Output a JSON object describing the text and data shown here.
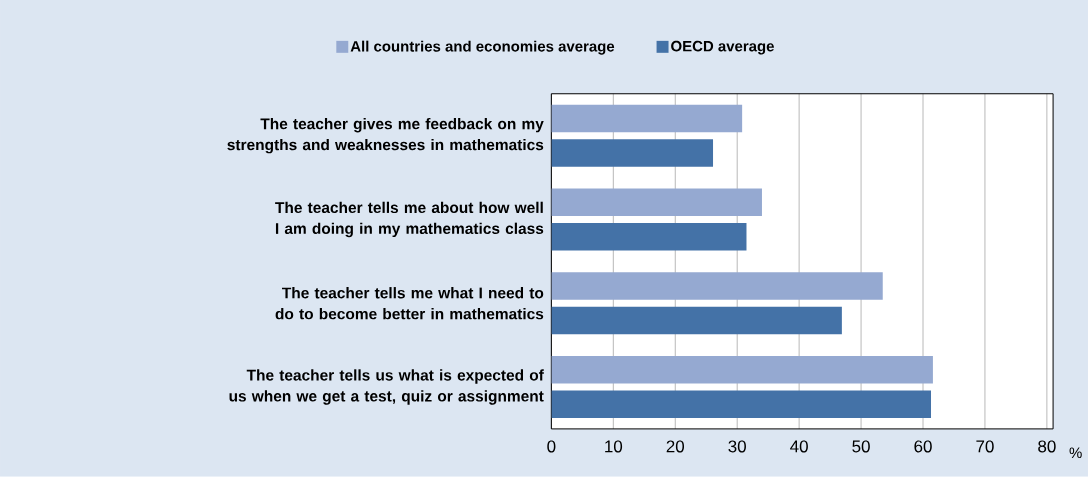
{
  "chart_data": {
    "type": "bar",
    "orientation": "horizontal",
    "xlabel": "%",
    "categories": [
      "The teacher gives me feedback on my strengths and weaknesses in mathematics",
      "The teacher tells me about how well I am doing in my mathematics class",
      "The teacher tells me what I need to do to become better in mathematics",
      "The teacher tells us what is expected of us when we get a test, quiz or assignment"
    ],
    "series": [
      {
        "name": "All countries and economies average",
        "color": "#95a9d1",
        "values": [
          30.8,
          34.0,
          53.5,
          61.6
        ]
      },
      {
        "name": "OECD average",
        "color": "#4472a7",
        "values": [
          26.1,
          31.5,
          46.9,
          61.3
        ]
      }
    ],
    "xlim": [
      0,
      81
    ],
    "xticks": [
      0,
      10,
      20,
      30,
      40,
      50,
      60,
      70,
      80
    ],
    "grid": "x",
    "legend": "top"
  }
}
